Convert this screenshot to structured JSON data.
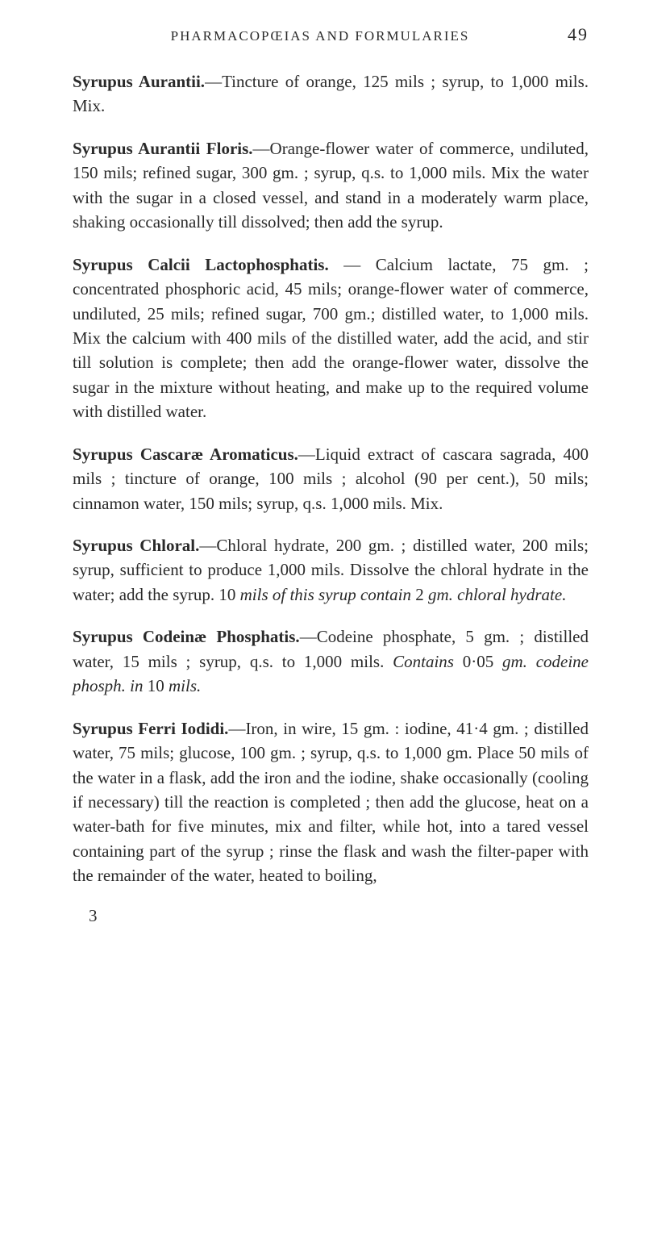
{
  "header": {
    "title": "PHARMACOPŒIAS AND FORMULARIES",
    "page_number": "49"
  },
  "entries": [
    {
      "title": "Syrupus Aurantii.",
      "body": "—Tincture of orange, 125 mils ; syrup, to 1,000 mils. Mix."
    },
    {
      "title": "Syrupus Aurantii Floris.",
      "body": "—Orange-flower water of commerce, undiluted, 150 mils; refined sugar, 300 gm. ; syrup, q.s. to 1,000 mils. Mix the water with the sugar in a closed vessel, and stand in a moderately warm place, shaking occasionally till dissolved; then add the syrup."
    },
    {
      "title": "Syrupus Calcii Lactophosphatis.",
      "body": " — Calcium lactate, 75 gm. ; concentrated phosphoric acid, 45 mils; orange-flower water of commerce, undiluted, 25 mils; refined sugar, 700 gm.; distilled water, to 1,000 mils. Mix the calcium with 400 mils of the distilled water, add the acid, and stir till solution is complete; then add the orange-flower water, dissolve the sugar in the mixture without heating, and make up to the required volume with distilled water."
    },
    {
      "title": "Syrupus Cascaræ Aromaticus.",
      "body": "—Liquid extract of cascara sagrada, 400 mils ; tincture of orange, 100 mils ; alcohol (90 per cent.), 50 mils; cinnamon water, 150 mils; syrup, q.s. 1,000 mils. Mix."
    },
    {
      "title": "Syrupus Chloral.",
      "body": "—Chloral hydrate, 200 gm. ; distilled water, 200 mils; syrup, sufficient to produce 1,000 mils. Dissolve the chloral hydrate in the water; add the syrup. 10 ",
      "italic": "mils of this syrup contain",
      "body2": " 2 ",
      "italic2": "gm. chloral hydrate."
    },
    {
      "title": "Syrupus Codeinæ Phosphatis.",
      "body": "—Codeine phosphate, 5 gm. ; distilled water, 15 mils ; syrup, q.s. to 1,000 mils. ",
      "italic": "Contains",
      "body2": " 0·05 ",
      "italic2": "gm. codeine phosph. in",
      "body3": " 10 ",
      "italic3": "mils."
    },
    {
      "title": "Syrupus Ferri Iodidi.",
      "body": "—Iron, in wire, 15 gm. : iodine, 41·4 gm. ; distilled water, 75 mils; glucose, 100 gm. ; syrup, q.s. to 1,000 gm. Place 50 mils of the water in a flask, add the iron and the iodine, shake occasionally (cooling if necessary) till the reaction is completed ; then add the glucose, heat on a water-bath for five minutes, mix and filter, while hot, into a tared vessel containing part of the syrup ; rinse the flask and wash the filter-paper with the remainder of the water, heated to boiling,"
    }
  ],
  "footer": "3"
}
